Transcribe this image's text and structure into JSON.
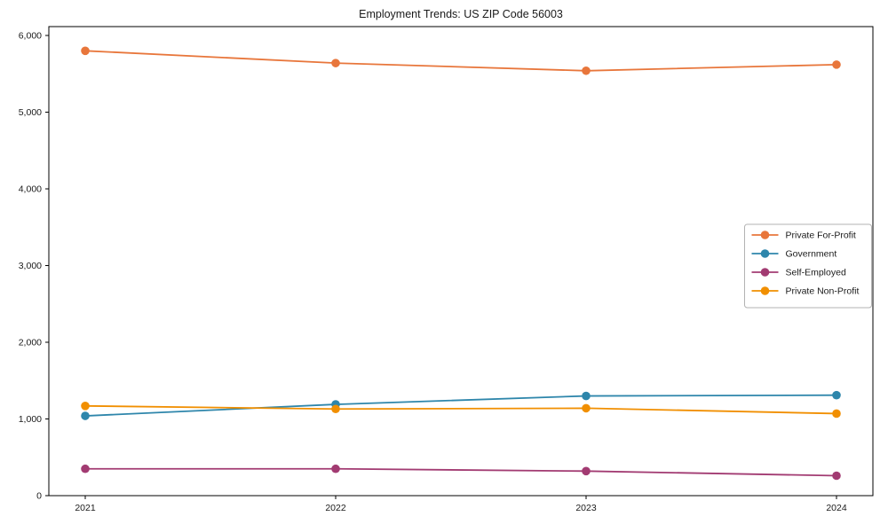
{
  "figure": {
    "title": "Employment Trends: US ZIP Code 56003"
  },
  "chart_data": {
    "type": "line",
    "title": "Employment Trends: US ZIP Code 56003",
    "xlabel": "",
    "ylabel": "",
    "categories": [
      "2021",
      "2022",
      "2023",
      "2024"
    ],
    "series": [
      {
        "name": "Private For-Profit",
        "color": "#E8763B",
        "values": [
          5800,
          5640,
          5540,
          5620
        ]
      },
      {
        "name": "Government",
        "color": "#2E86AB",
        "values": [
          1040,
          1190,
          1300,
          1310
        ]
      },
      {
        "name": "Self-Employed",
        "color": "#A23B72",
        "values": [
          350,
          350,
          320,
          260
        ]
      },
      {
        "name": "Private Non-Profit",
        "color": "#F18F01",
        "values": [
          1170,
          1130,
          1140,
          1070
        ]
      }
    ],
    "ylim": [
      0,
      6000
    ],
    "yticks": [
      0,
      1000,
      2000,
      3000,
      4000,
      5000,
      6000
    ],
    "ytick_labels": [
      "0",
      "1,000",
      "2,000",
      "3,000",
      "4,000",
      "5,000",
      "6,000"
    ],
    "grid": false,
    "marker": "circle",
    "legend_position": "center right",
    "colors": {
      "axis": "#000000",
      "text": "#1a1a1a",
      "legend_border": "#b3b3b3",
      "background": "#ffffff"
    }
  }
}
